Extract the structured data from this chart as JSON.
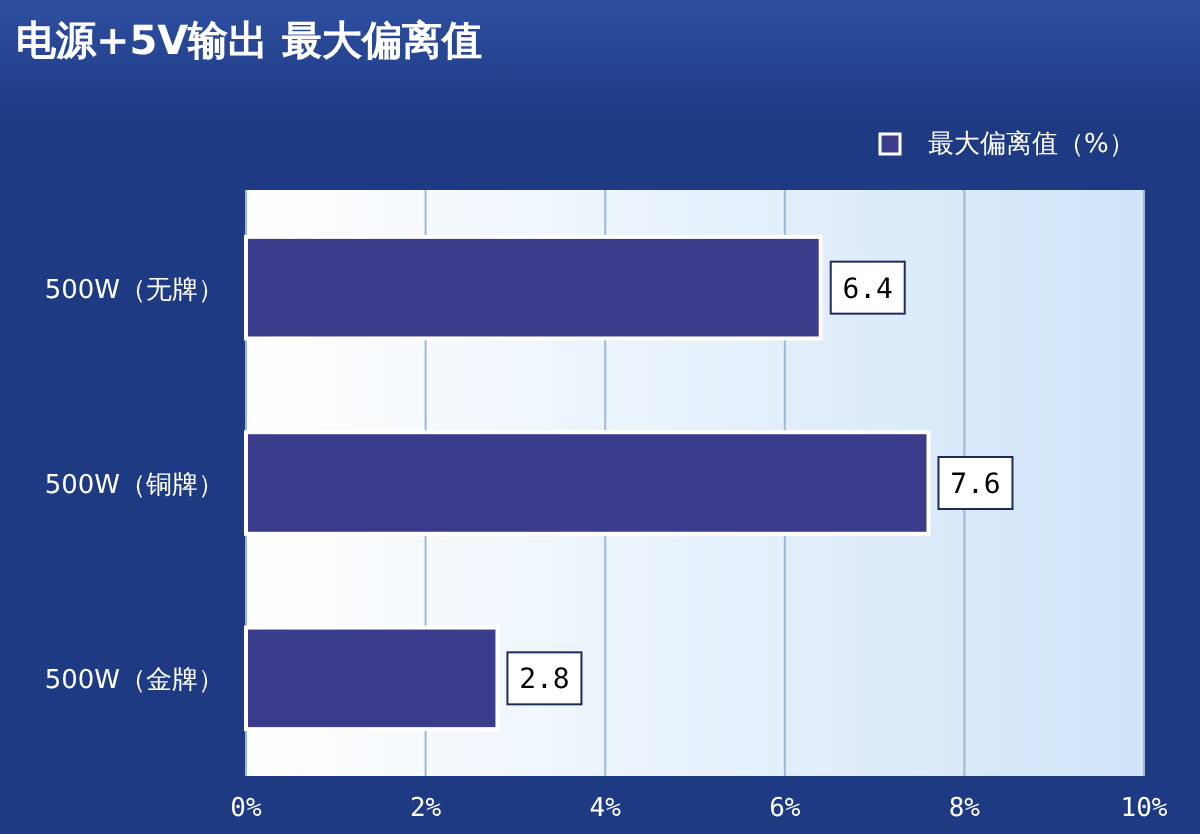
{
  "chart_data": {
    "type": "bar",
    "orientation": "horizontal",
    "title": "电源+5V输出 最大偏离值",
    "categories": [
      "500W（无牌）",
      "500W（铜牌）",
      "500W（金牌）"
    ],
    "series": [
      {
        "name": "最大偏离值（%）",
        "color": "#3c3c8c",
        "values": [
          6.4,
          7.6,
          2.8
        ]
      }
    ],
    "xlim": [
      0,
      10
    ],
    "xticks": [
      {
        "value": 0,
        "label": "0%"
      },
      {
        "value": 2,
        "label": "2%"
      },
      {
        "value": 4,
        "label": "4%"
      },
      {
        "value": 6,
        "label": "6%"
      },
      {
        "value": 8,
        "label": "8%"
      },
      {
        "value": 10,
        "label": "10%"
      }
    ],
    "grid": "x",
    "legend": "top right",
    "data_labels": true
  }
}
